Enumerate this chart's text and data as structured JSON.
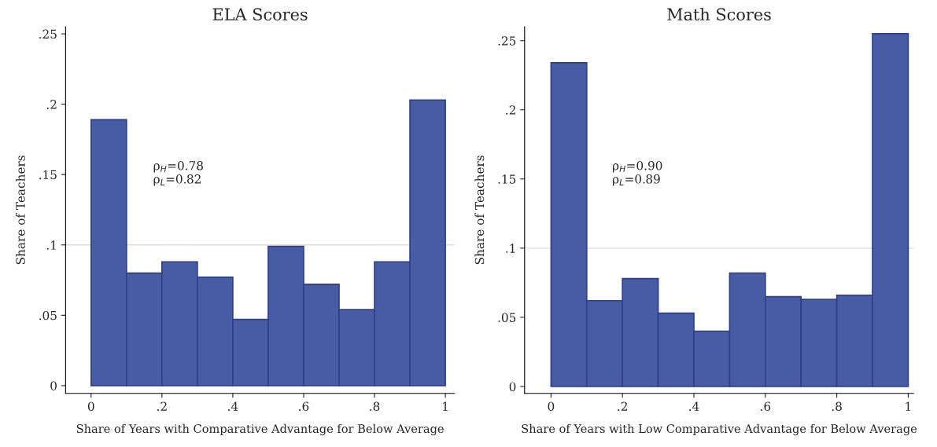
{
  "chart_data": [
    {
      "type": "histogram",
      "title": "ELA Scores",
      "xlabel": "Share of Years with Comparative Advantage for Below Average",
      "ylabel": "Share of Teachers",
      "bins": [
        0,
        0.1,
        0.2,
        0.3,
        0.4,
        0.5,
        0.6,
        0.7,
        0.8,
        0.9,
        1
      ],
      "values": [
        0.189,
        0.08,
        0.088,
        0.077,
        0.047,
        0.099,
        0.072,
        0.054,
        0.088,
        0.203
      ],
      "color": "#485ba5",
      "xlim": [
        -0.072,
        1.026
      ],
      "ylim": [
        -0.0055,
        0.255
      ],
      "xticks": [
        0,
        {
          "value": 0.2,
          "label": ".2"
        },
        {
          "value": 0.4,
          "label": ".4"
        },
        {
          "value": 0.6,
          "label": ".6"
        },
        {
          "value": 0.8,
          "label": ".8"
        },
        1
      ],
      "yticks": [
        0,
        {
          "value": 0.05,
          "label": ".05"
        },
        {
          "value": 0.1,
          "label": ".1"
        },
        {
          "value": 0.15,
          "label": ".15"
        },
        {
          "value": 0.2,
          "label": ".2"
        },
        {
          "value": 0.25,
          "label": ".25"
        }
      ],
      "ref_lines": [
        {
          "axis": "y",
          "value": 0.1,
          "color": "#dddddd"
        }
      ],
      "annotations": [
        "ρ$_{H}$=0.78\nρ$_{L}$=0.82"
      ],
      "grid": false,
      "legend": false
    },
    {
      "type": "histogram",
      "title": "Math Scores",
      "xlabel": "Share of Years with Low Comparative Advantage for Below Average",
      "ylabel": "Share of Teachers",
      "bins": [
        0,
        0.1,
        0.2,
        0.3,
        0.4,
        0.5,
        0.6,
        0.7,
        0.8,
        0.9,
        1
      ],
      "values": [
        0.234,
        0.062,
        0.078,
        0.053,
        0.04,
        0.082,
        0.065,
        0.063,
        0.066,
        0.255
      ],
      "color": "#485ba5",
      "xlim": [
        -0.074,
        1.015
      ],
      "ylim": [
        -0.005,
        0.26
      ],
      "xticks": [
        0,
        {
          "value": 0.2,
          "label": ".2"
        },
        {
          "value": 0.4,
          "label": ".4"
        },
        {
          "value": 0.6,
          "label": ".6"
        },
        {
          "value": 0.8,
          "label": ".8"
        },
        1
      ],
      "yticks": [
        0,
        {
          "value": 0.05,
          "label": ".05"
        },
        {
          "value": 0.1,
          "label": ".1"
        },
        {
          "value": 0.15,
          "label": ".15"
        },
        {
          "value": 0.2,
          "label": ".2"
        },
        {
          "value": 0.25,
          "label": ".25"
        }
      ],
      "ref_lines": [
        {
          "axis": "y",
          "value": 0.1,
          "color": "#dddddd"
        }
      ],
      "annotations": [
        "ρ$_{H}$=0.90\nρ$_{L}$=0.89"
      ],
      "grid": false,
      "legend": false
    }
  ]
}
